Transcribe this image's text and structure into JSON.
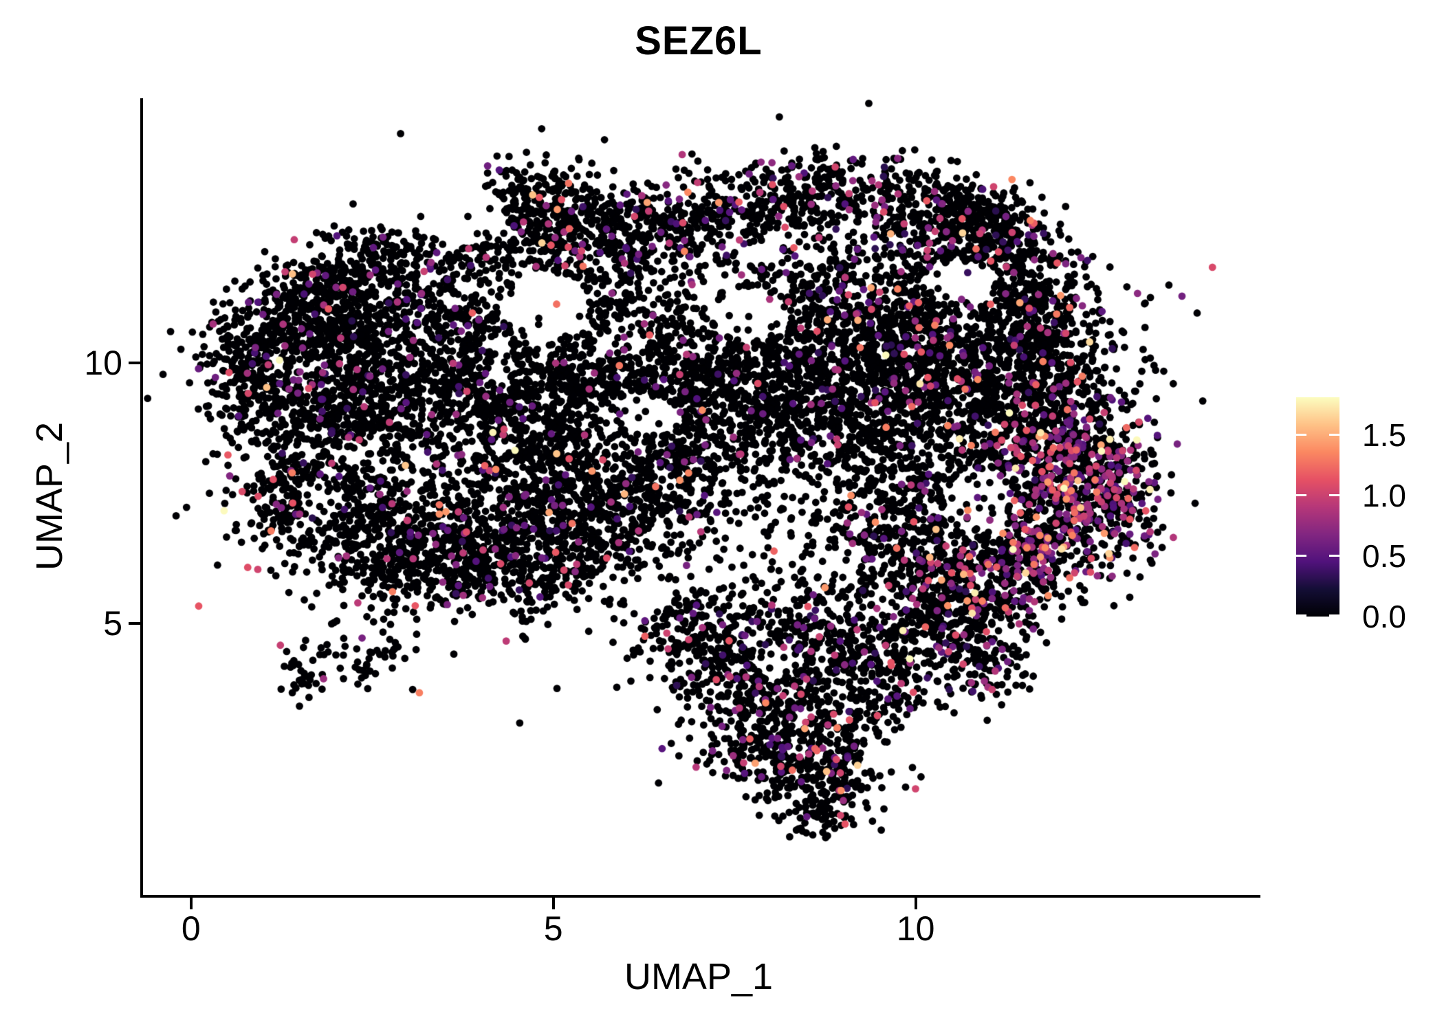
{
  "title": "SEZ6L",
  "axes": {
    "x": {
      "label": "UMAP_1",
      "range": [
        -0.7,
        14.72
      ],
      "ticks": [
        {
          "value": 0,
          "label": "0"
        },
        {
          "value": 5,
          "label": "5"
        },
        {
          "value": 10,
          "label": "10"
        }
      ]
    },
    "y": {
      "label": "UMAP_2",
      "range": [
        -0.21,
        15.08
      ],
      "ticks": [
        {
          "value": 5,
          "label": "5"
        },
        {
          "value": 10,
          "label": "10"
        }
      ]
    }
  },
  "colorbar": {
    "position": "right",
    "domain": [
      0,
      1.81
    ],
    "ticks": [
      {
        "value": 1.5,
        "label": "1.5"
      },
      {
        "value": 1.0,
        "label": "1.0"
      },
      {
        "value": 0.5,
        "label": "0.5"
      },
      {
        "value": 0.0,
        "label": "0.0"
      }
    ],
    "stops": [
      {
        "t": 0.0,
        "color": "#000004"
      },
      {
        "t": 0.125,
        "color": "#140e36"
      },
      {
        "t": 0.25,
        "color": "#51127c"
      },
      {
        "t": 0.375,
        "color": "#822681"
      },
      {
        "t": 0.5,
        "color": "#b63779"
      },
      {
        "t": 0.625,
        "color": "#e65164"
      },
      {
        "t": 0.75,
        "color": "#fb8861"
      },
      {
        "t": 0.875,
        "color": "#fec287"
      },
      {
        "t": 1.0,
        "color": "#fcfdbf"
      }
    ],
    "tick_color": "#ffffff"
  },
  "chart_data": {
    "type": "scatter",
    "title": "SEZ6L",
    "xlabel": "UMAP_1",
    "ylabel": "UMAP_2",
    "xlim": [
      -0.7,
      14.72
    ],
    "ylim": [
      -0.21,
      15.08
    ],
    "x_ticks": [
      0,
      5,
      10
    ],
    "y_ticks": [
      5,
      10
    ],
    "grid": false,
    "background": "#ffffff",
    "legend": {
      "type": "colorbar",
      "position": "right",
      "domain": [
        0,
        1.81
      ],
      "ticks": [
        0.0,
        0.5,
        1.0,
        1.5
      ],
      "colormap": "magma"
    },
    "point_radius_px": 5.4,
    "zero_expression_color": "#000004",
    "seed": 20240613,
    "value_model": {
      "base": 0.3,
      "spread": 0.55,
      "min": 0.25,
      "max": 1.8,
      "hot_cluster_bonus": 0.1,
      "hot_cf_threshold": 0.2
    },
    "clusters": [
      [
        0.62,
        10.2,
        0.28,
        0.55,
        150,
        0.07
      ],
      [
        1.0,
        9.35,
        0.35,
        0.6,
        160,
        0.1
      ],
      [
        1.6,
        10.8,
        0.5,
        0.5,
        200,
        0.05
      ],
      [
        2.6,
        11.9,
        0.55,
        0.38,
        240,
        0.05
      ],
      [
        1.75,
        11.4,
        0.4,
        0.35,
        120,
        0.05
      ],
      [
        3.4,
        10.7,
        0.75,
        0.55,
        330,
        0.05
      ],
      [
        2.2,
        10.2,
        0.6,
        0.5,
        240,
        0.05
      ],
      [
        4.35,
        12.15,
        0.45,
        0.4,
        150,
        0.06
      ],
      [
        4.7,
        13.2,
        0.45,
        0.35,
        160,
        0.05
      ],
      [
        5.5,
        12.55,
        0.55,
        0.4,
        170,
        0.1
      ],
      [
        6.6,
        12.65,
        0.7,
        0.4,
        220,
        0.16
      ],
      [
        7.9,
        13.1,
        0.55,
        0.4,
        180,
        0.12
      ],
      [
        8.6,
        13.55,
        0.35,
        0.25,
        70,
        0.08
      ],
      [
        9.8,
        13.2,
        0.55,
        0.35,
        170,
        0.09
      ],
      [
        10.75,
        12.85,
        0.4,
        0.3,
        190,
        0.07
      ],
      [
        11.2,
        12.25,
        0.35,
        0.35,
        130,
        0.12
      ],
      [
        10.2,
        12.35,
        0.5,
        0.35,
        140,
        0.1
      ],
      [
        11.55,
        11.3,
        0.35,
        0.5,
        150,
        0.1
      ],
      [
        11.75,
        10.3,
        0.4,
        0.5,
        170,
        0.09
      ],
      [
        2.0,
        9.1,
        0.6,
        0.5,
        240,
        0.06
      ],
      [
        3.3,
        9.3,
        0.7,
        0.55,
        280,
        0.06
      ],
      [
        4.6,
        9.4,
        0.6,
        0.55,
        220,
        0.05
      ],
      [
        5.5,
        10.2,
        0.5,
        0.5,
        170,
        0.05
      ],
      [
        6.0,
        11.3,
        0.6,
        0.55,
        170,
        0.07
      ],
      [
        2.4,
        7.0,
        0.75,
        0.6,
        330,
        0.06
      ],
      [
        3.9,
        6.7,
        0.75,
        0.55,
        330,
        0.07
      ],
      [
        1.4,
        7.6,
        0.45,
        0.5,
        160,
        0.07
      ],
      [
        2.9,
        5.95,
        0.7,
        0.4,
        200,
        0.06
      ],
      [
        4.5,
        5.9,
        0.6,
        0.4,
        160,
        0.07
      ],
      [
        5.5,
        6.5,
        0.6,
        0.5,
        200,
        0.08
      ],
      [
        6.4,
        7.3,
        0.6,
        0.6,
        200,
        0.07
      ],
      [
        5.3,
        7.6,
        0.6,
        0.6,
        220,
        0.06
      ],
      [
        4.6,
        8.1,
        0.6,
        0.5,
        200,
        0.05
      ],
      [
        6.9,
        8.4,
        0.6,
        0.6,
        200,
        0.07
      ],
      [
        6.2,
        9.7,
        0.6,
        0.5,
        200,
        0.05
      ],
      [
        7.2,
        9.9,
        0.6,
        0.5,
        220,
        0.06
      ],
      [
        7.8,
        9.0,
        0.6,
        0.6,
        220,
        0.06
      ],
      [
        8.7,
        9.8,
        0.7,
        0.6,
        280,
        0.06
      ],
      [
        8.4,
        11.0,
        0.6,
        0.5,
        200,
        0.08
      ],
      [
        9.4,
        11.3,
        0.6,
        0.5,
        200,
        0.08
      ],
      [
        9.6,
        10.3,
        0.6,
        0.5,
        220,
        0.07
      ],
      [
        10.5,
        10.6,
        0.55,
        0.5,
        200,
        0.08
      ],
      [
        10.9,
        9.7,
        0.55,
        0.5,
        200,
        0.09
      ],
      [
        9.2,
        8.6,
        0.6,
        0.55,
        220,
        0.07
      ],
      [
        10.1,
        9.2,
        0.5,
        0.5,
        180,
        0.07
      ],
      [
        10.2,
        7.6,
        0.6,
        0.6,
        220,
        0.09
      ],
      [
        9.4,
        6.9,
        0.55,
        0.55,
        180,
        0.08
      ],
      [
        11.3,
        8.7,
        0.5,
        0.55,
        200,
        0.12
      ],
      [
        11.9,
        9.4,
        0.45,
        0.5,
        170,
        0.12
      ],
      [
        11.8,
        7.8,
        0.5,
        0.6,
        240,
        0.22
      ],
      [
        12.4,
        8.4,
        0.4,
        0.5,
        190,
        0.25
      ],
      [
        12.3,
        7.0,
        0.5,
        0.6,
        280,
        0.33
      ],
      [
        11.5,
        6.3,
        0.5,
        0.5,
        240,
        0.3
      ],
      [
        12.8,
        7.6,
        0.25,
        0.5,
        120,
        0.28
      ],
      [
        10.8,
        5.6,
        0.45,
        0.45,
        170,
        0.18
      ],
      [
        10.1,
        6.2,
        0.5,
        0.45,
        160,
        0.1
      ],
      [
        10.85,
        4.4,
        0.35,
        0.55,
        130,
        0.15
      ],
      [
        10.3,
        5.0,
        0.4,
        0.4,
        120,
        0.12
      ],
      [
        8.5,
        4.8,
        1.1,
        0.45,
        260,
        0.07
      ],
      [
        7.3,
        4.3,
        0.55,
        0.5,
        170,
        0.08
      ],
      [
        8.3,
        3.6,
        0.8,
        0.55,
        280,
        0.1
      ],
      [
        9.5,
        3.9,
        0.5,
        0.5,
        170,
        0.12
      ],
      [
        7.9,
        2.6,
        0.55,
        0.45,
        220,
        0.12
      ],
      [
        8.8,
        2.3,
        0.45,
        0.4,
        180,
        0.12
      ],
      [
        8.6,
        1.45,
        0.35,
        0.3,
        90,
        0.1
      ],
      [
        6.85,
        5.0,
        0.4,
        0.35,
        90,
        0.06
      ],
      [
        2.3,
        4.35,
        0.45,
        0.3,
        55,
        0.04
      ],
      [
        1.55,
        3.9,
        0.22,
        0.18,
        25,
        0.04
      ],
      [
        5.0,
        9.0,
        2.2,
        1.8,
        420,
        0.06
      ],
      [
        8.8,
        9.8,
        1.8,
        1.5,
        380,
        0.07
      ],
      [
        7.0,
        12.3,
        1.5,
        0.55,
        150,
        0.1
      ],
      [
        3.0,
        7.8,
        1.5,
        1.2,
        260,
        0.06
      ],
      [
        9.0,
        5.6,
        1.0,
        0.6,
        150,
        0.09
      ],
      [
        11.7,
        11.0,
        0.8,
        0.9,
        150,
        0.1
      ]
    ],
    "holes": [
      [
        4.85,
        11.05,
        0.6,
        0.7,
        0.1
      ],
      [
        3.7,
        12.9,
        0.55,
        0.65,
        0.1
      ],
      [
        7.7,
        10.9,
        0.55,
        0.5,
        0.12
      ],
      [
        10.55,
        11.55,
        0.5,
        0.4,
        0.12
      ],
      [
        6.35,
        8.95,
        0.4,
        0.35,
        0.15
      ],
      [
        1.75,
        7.35,
        0.3,
        0.35,
        0.2
      ],
      [
        9.6,
        2.5,
        0.4,
        0.35,
        0.15
      ],
      [
        8.05,
        4.3,
        0.35,
        0.3,
        0.2
      ],
      [
        5.9,
        10.4,
        0.35,
        0.3,
        0.2
      ],
      [
        10.8,
        7.3,
        0.45,
        0.6,
        0.3
      ]
    ]
  }
}
